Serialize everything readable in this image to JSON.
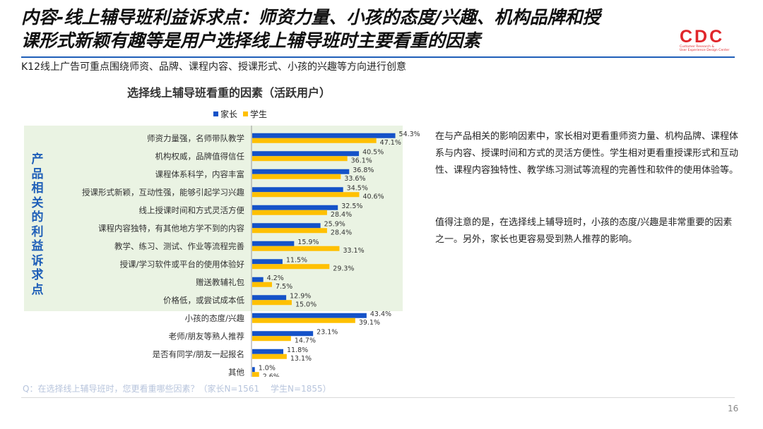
{
  "header": {
    "title_line1": "内容-线上辅导班利益诉求点：师资力量、小孩的态度/兴趣、机构品牌和授",
    "title_line2": "课形式新颖有趣等是用户选择线上辅导班时主要看重的因素",
    "subtitle": "K12线上广告可重点围绕师资、品牌、课程内容、授课形式、小孩的兴趣等方向进行创意",
    "logo_text": "CDC",
    "logo_sub1": "Customer Research &",
    "logo_sub2": "User Experience Design Center"
  },
  "colors": {
    "parent": "#1452c8",
    "student": "#ffc000",
    "panel": "#eaf3e3",
    "accent": "#1f5fb8"
  },
  "side_label": "产品相关的利益诉求点",
  "chart_data": {
    "type": "bar",
    "orientation": "horizontal",
    "title": "选择线上辅导班看重的因素（活跃用户）",
    "legend": [
      "家长",
      "学生"
    ],
    "legend_position": "top",
    "categories": [
      "师资力量强，名师带队教学",
      "机构权威，品牌值得信任",
      "课程体系科学，内容丰富",
      "授课形式新颖，互动性强，能够引起学习兴趣",
      "线上授课时间和方式灵活方便",
      "课程内容独特，有其他地方学不到的内容",
      "教学、练习、测试、作业等流程完善",
      "授课/学习软件或平台的使用体验好",
      "赠送教辅礼包",
      "价格低，或尝试成本低",
      "小孩的态度/兴趣",
      "老师/朋友等熟人推荐",
      "是否有同学/朋友一起报名",
      "其他"
    ],
    "series": [
      {
        "name": "家长",
        "values": [
          54.3,
          40.5,
          36.8,
          34.5,
          32.5,
          25.9,
          15.9,
          11.5,
          4.2,
          12.9,
          43.4,
          23.1,
          11.8,
          1.0
        ]
      },
      {
        "name": "学生",
        "values": [
          47.1,
          36.1,
          33.6,
          40.6,
          28.4,
          28.4,
          33.1,
          29.3,
          7.5,
          15.0,
          39.1,
          14.7,
          13.1,
          2.6
        ]
      }
    ],
    "value_format": "%",
    "xlim": [
      0,
      56
    ]
  },
  "paragraphs": [
    "在与产品相关的影响因素中，家长相对更看重师资力量、机构品牌、课程体系与内容、授课时间和方式的灵活方便性。学生相对更看重授课形式和互动性、课程内容独特性、教学练习测试等流程的完善性和软件的使用体验等。",
    "值得注意的是，在选择线上辅导班时，小孩的态度/兴趣是非常重要的因素之一。另外，家长也更容易受到熟人推荐的影响。"
  ],
  "footnote": {
    "question": "Q：在选择线上辅导班时，您更看重哪些因素？（家长N=1561",
    "sample": "学生N=1855）"
  },
  "page_number": "16"
}
